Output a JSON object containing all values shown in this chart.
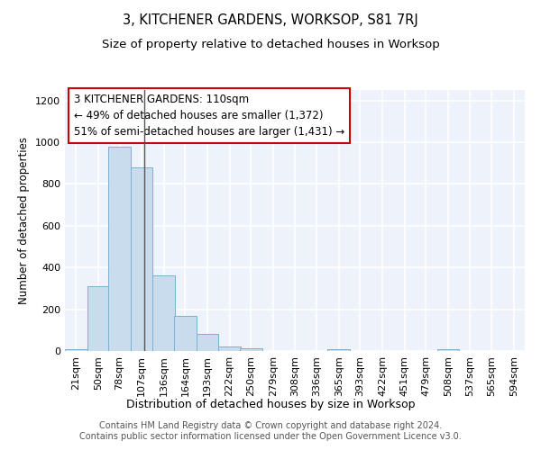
{
  "title": "3, KITCHENER GARDENS, WORKSOP, S81 7RJ",
  "subtitle": "Size of property relative to detached houses in Worksop",
  "xlabel": "Distribution of detached houses by size in Worksop",
  "ylabel": "Number of detached properties",
  "bar_color": "#c9dced",
  "bar_edge_color": "#7ab0d4",
  "background_color": "#eef2fb",
  "grid_color": "#ffffff",
  "annotation_box_edge_color": "#cc0000",
  "annotation_line1": "3 KITCHENER GARDENS: 110sqm",
  "annotation_line2": "← 49% of detached houses are smaller (1,372)",
  "annotation_line3": "51% of semi-detached houses are larger (1,431) →",
  "vline_x": 110,
  "vline_color": "#555555",
  "bins": [
    21,
    50,
    78,
    107,
    136,
    164,
    193,
    222,
    250,
    279,
    308,
    336,
    365,
    393,
    422,
    451,
    479,
    508,
    537,
    565,
    594
  ],
  "values": [
    10,
    310,
    980,
    880,
    360,
    170,
    80,
    22,
    12,
    0,
    0,
    0,
    10,
    0,
    0,
    0,
    0,
    10,
    0,
    0,
    0
  ],
  "bin_width": 29,
  "ylim": [
    0,
    1250
  ],
  "yticks": [
    0,
    200,
    400,
    600,
    800,
    1000,
    1200
  ],
  "footer": "Contains HM Land Registry data © Crown copyright and database right 2024.\nContains public sector information licensed under the Open Government Licence v3.0.",
  "title_fontsize": 10.5,
  "subtitle_fontsize": 9.5,
  "xlabel_fontsize": 9,
  "ylabel_fontsize": 8.5,
  "tick_fontsize": 8,
  "footer_fontsize": 7,
  "annotation_fontsize": 8.5
}
